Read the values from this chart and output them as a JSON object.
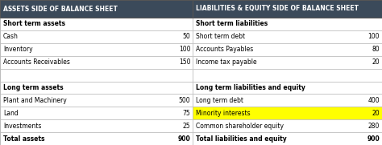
{
  "header_left": "ASSETS SIDE OF BALANCE SHEET",
  "header_right": "LIABILITIES & EQUITY SIDE OF BALANCE SHEET",
  "header_bg": "#3b4a5a",
  "header_text_color": "#ffffff",
  "highlight_color": "#ffff00",
  "border_color": "#bbbbbb",
  "left_rows": [
    {
      "label": "Short term assets",
      "value": "",
      "bold": true,
      "section": true
    },
    {
      "label": "Cash",
      "value": "50",
      "bold": false,
      "section": false
    },
    {
      "label": "Inventory",
      "value": "100",
      "bold": false,
      "section": false
    },
    {
      "label": "Accounts Receivables",
      "value": "150",
      "bold": false,
      "section": false
    },
    {
      "label": "",
      "value": "",
      "bold": false,
      "section": true
    },
    {
      "label": "Long term assets",
      "value": "",
      "bold": true,
      "section": true
    },
    {
      "label": "Plant and Machinery",
      "value": "500",
      "bold": false,
      "section": false
    },
    {
      "label": "Land",
      "value": "75",
      "bold": false,
      "section": false
    },
    {
      "label": "Investments",
      "value": "25",
      "bold": false,
      "section": false
    },
    {
      "label": "Total assets",
      "value": "900",
      "bold": true,
      "section": false
    }
  ],
  "right_rows": [
    {
      "label": "Short term liabilities",
      "value": "",
      "bold": true,
      "section": true,
      "highlight": false
    },
    {
      "label": "Short term debt",
      "value": "100",
      "bold": false,
      "section": false,
      "highlight": false
    },
    {
      "label": "Accounts Payables",
      "value": "80",
      "bold": false,
      "section": false,
      "highlight": false
    },
    {
      "label": "Income tax payable",
      "value": "20",
      "bold": false,
      "section": false,
      "highlight": false
    },
    {
      "label": "",
      "value": "",
      "bold": false,
      "section": true,
      "highlight": false
    },
    {
      "label": "Long term liabilities and equity",
      "value": "",
      "bold": true,
      "section": true,
      "highlight": false
    },
    {
      "label": "Long term debt",
      "value": "400",
      "bold": false,
      "section": false,
      "highlight": false
    },
    {
      "label": "Minority interests",
      "value": "20",
      "bold": false,
      "section": false,
      "highlight": true
    },
    {
      "label": "Common shareholder equity",
      "value": "280",
      "bold": false,
      "section": false,
      "highlight": false
    },
    {
      "label": "Total liabilities and equity",
      "value": "900",
      "bold": true,
      "section": false,
      "highlight": false
    }
  ],
  "fig_width": 4.74,
  "fig_height": 1.81,
  "dpi": 100
}
